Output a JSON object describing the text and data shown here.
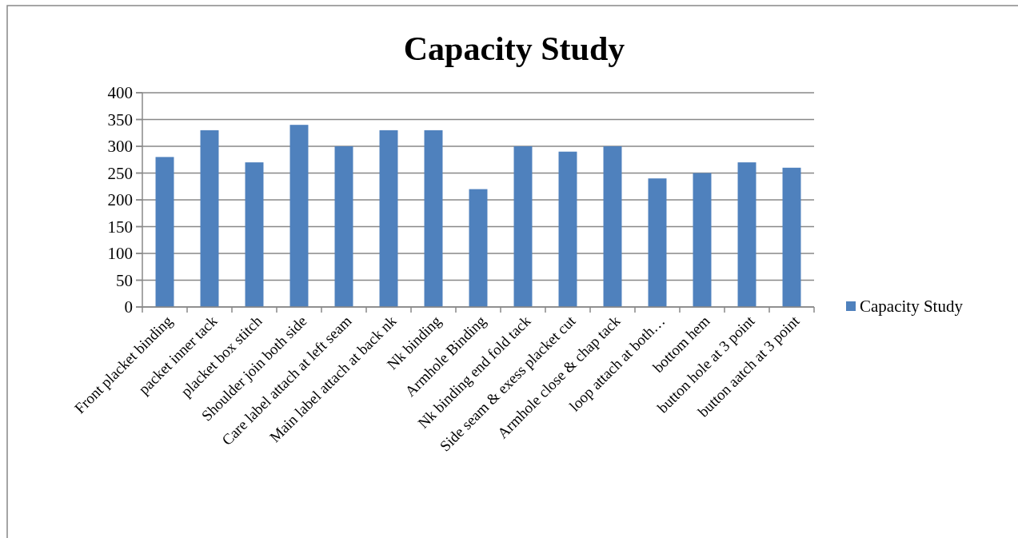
{
  "chart_data": {
    "type": "bar",
    "title": "Capacity Study",
    "categories": [
      "Front placket binding",
      "packet inner tack",
      "placket box stitch",
      "Shoulder join both side",
      "Care label attach at left seam",
      "Main label attach at back nk",
      "Nk binding",
      "Armhole Binding",
      "Nk binding end fold tack",
      "Side seam & exess placket cut",
      "Armhole close & chap tack",
      "loop attach at both…",
      "bottom hem",
      "button hole at 3 point",
      "button aatch at 3 point"
    ],
    "series": [
      {
        "name": "Capacity Study",
        "color": "#4f81bd",
        "values": [
          280,
          330,
          270,
          340,
          300,
          330,
          330,
          220,
          300,
          290,
          300,
          240,
          250,
          270,
          260
        ]
      }
    ],
    "ylim": [
      0,
      400
    ],
    "yticks": [
      0,
      50,
      100,
      150,
      200,
      250,
      300,
      350,
      400
    ],
    "grid": "y",
    "legend": "right"
  }
}
